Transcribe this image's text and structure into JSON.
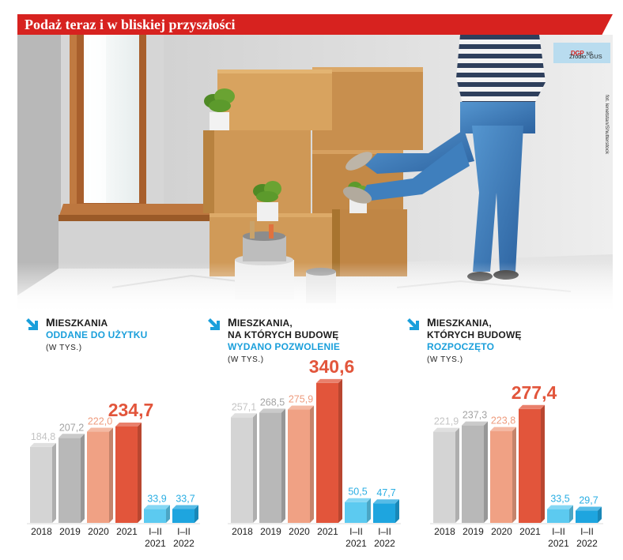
{
  "header": {
    "title": "Podaż teraz i w bliskiej przyszłości"
  },
  "photo": {
    "logo": "DGP",
    "logo_suffix": "NS",
    "source": "Źródło: GUS",
    "credit": "fot. lenetstan/Shutterstock"
  },
  "colors": {
    "header_bg": "#d7221f",
    "accent_blue": "#1a9fdb",
    "bars": [
      "#d4d4d4",
      "#b8b8b8",
      "#f0a184",
      "#e2553b",
      "#5ccaf0",
      "#1ea5df"
    ],
    "labels": [
      "#c4c4c4",
      "#a3a3a3",
      "#ee9b7d",
      "#e2553b",
      "#2aaee3",
      "#2aaee3"
    ]
  },
  "chart_data": [
    {
      "type": "bar",
      "title": [
        "MIESZKANIA"
      ],
      "highlight": "ODDANE DO UŻYTKU",
      "unit": "(W TYS.)",
      "categories": [
        "2018",
        "2019",
        "2020",
        "2021",
        "I–II 2021",
        "I–II 2022"
      ],
      "values": [
        184.8,
        207.2,
        222.0,
        234.7,
        33.9,
        33.7
      ]
    },
    {
      "type": "bar",
      "title": [
        "MIESZKANIA,",
        "NA KTÓRYCH BUDOWĘ"
      ],
      "highlight": "WYDANO POZWOLENIE",
      "unit": "(W TYS.)",
      "categories": [
        "2018",
        "2019",
        "2020",
        "2021",
        "I–II 2021",
        "I–II 2022"
      ],
      "values": [
        257.1,
        268.5,
        275.9,
        340.6,
        50.5,
        47.7
      ]
    },
    {
      "type": "bar",
      "title": [
        "MIESZKANIA,",
        "KTÓRYCH BUDOWĘ"
      ],
      "highlight": "ROZPOCZĘTO",
      "unit": "(W TYS.)",
      "categories": [
        "2018",
        "2019",
        "2020",
        "2021",
        "I–II 2021",
        "I–II 2022"
      ],
      "values": [
        221.9,
        237.3,
        223.8,
        277.4,
        33.5,
        29.7
      ]
    }
  ]
}
